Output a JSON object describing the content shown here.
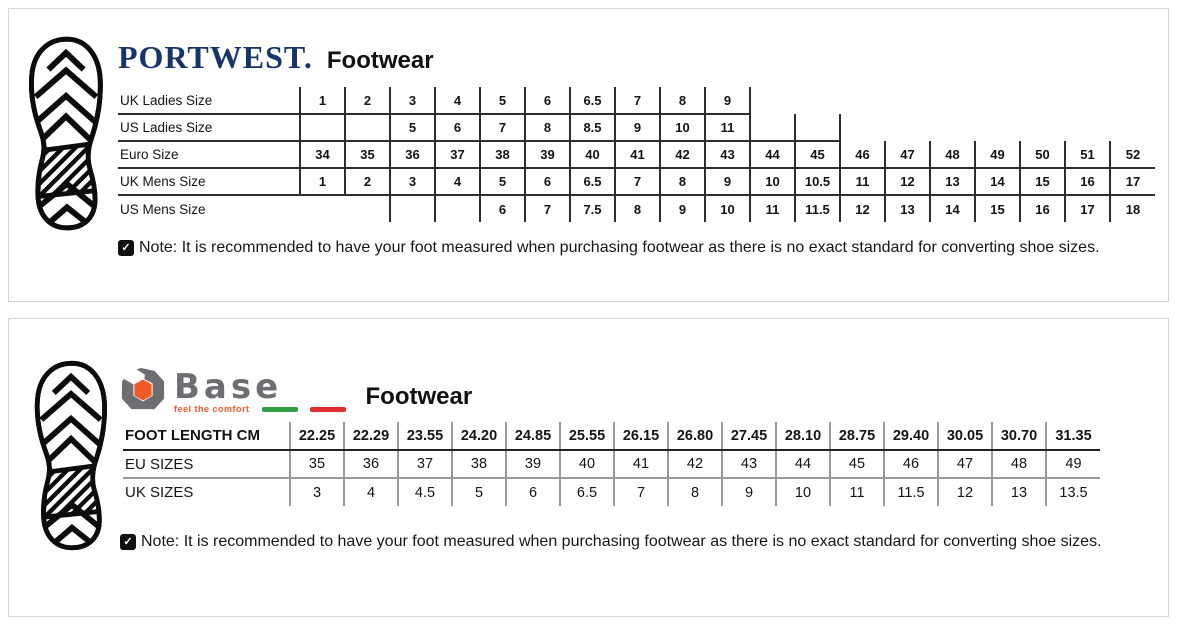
{
  "colors": {
    "portwest_navy": "#17346a",
    "base_gray": "#6d6e71",
    "base_orange": "#f05a28",
    "flag_green": "#2fa042",
    "flag_red": "#e12e2e"
  },
  "icons": {
    "boot_print": "boot-print-icon",
    "note_check": "checkbox-check-icon",
    "base_logo": "base-hex-nut-icon"
  },
  "note_icon_glyph": "✓",
  "panels": {
    "portwest": {
      "brand": "PORTWEST.",
      "title": "Footwear",
      "note": "Note: It is recommended to have your foot measured when purchasing footwear as there is no exact standard for converting shoe sizes.",
      "table": {
        "columns": 19,
        "rows": [
          {
            "label": "UK Ladies Size",
            "underline": true,
            "cap_right": true,
            "cells": [
              "1",
              "2",
              "3",
              "4",
              "5",
              "6",
              "6.5",
              "7",
              "8",
              "9",
              null,
              null,
              null,
              null,
              null,
              null,
              null,
              null,
              null
            ]
          },
          {
            "label": "US Ladies Size",
            "underline": true,
            "cap_right": true,
            "cells": [
              "",
              "",
              "5",
              "6",
              "7",
              "8",
              "8.5",
              "9",
              "10",
              "11",
              "",
              "",
              null,
              null,
              null,
              null,
              null,
              null,
              null
            ]
          },
          {
            "label": "Euro Size",
            "underline": true,
            "cap_right": false,
            "cells": [
              "34",
              "35",
              "36",
              "37",
              "38",
              "39",
              "40",
              "41",
              "42",
              "43",
              "44",
              "45",
              "46",
              "47",
              "48",
              "49",
              "50",
              "51",
              "52"
            ]
          },
          {
            "label": "UK Mens Size",
            "underline": true,
            "cap_right": false,
            "cells": [
              "1",
              "2",
              "3",
              "4",
              "5",
              "6",
              "6.5",
              "7",
              "8",
              "9",
              "10",
              "10.5",
              "11",
              "12",
              "13",
              "14",
              "15",
              "16",
              "17"
            ]
          },
          {
            "label": "US Mens Size",
            "underline": false,
            "cap_right": false,
            "cells": [
              null,
              null,
              "",
              "",
              "6",
              "7",
              "7.5",
              "8",
              "9",
              "10",
              "11",
              "11.5",
              "12",
              "13",
              "14",
              "15",
              "16",
              "17",
              "18"
            ]
          }
        ]
      }
    },
    "base": {
      "brand": "Base",
      "tagline": "feel the comfort",
      "title": "Footwear",
      "note": "Note: It is recommended to have your foot measured when purchasing footwear as there is no exact standard for converting shoe sizes.",
      "table": {
        "columns": 15,
        "rows": [
          {
            "label": "FOOT LENGTH CM",
            "style": "hdr",
            "cells": [
              "22.25",
              "22.29",
              "23.55",
              "24.20",
              "24.85",
              "25.55",
              "26.15",
              "26.80",
              "27.45",
              "28.10",
              "28.75",
              "29.40",
              "30.05",
              "30.70",
              "31.35"
            ]
          },
          {
            "label": "EU SIZES",
            "style": "mid",
            "cells": [
              "35",
              "36",
              "37",
              "38",
              "39",
              "40",
              "41",
              "42",
              "43",
              "44",
              "45",
              "46",
              "47",
              "48",
              "49"
            ]
          },
          {
            "label": "UK SIZES",
            "style": "last",
            "cells": [
              "3",
              "4",
              "4.5",
              "5",
              "6",
              "6.5",
              "7",
              "8",
              "9",
              "10",
              "11",
              "11.5",
              "12",
              "13",
              "13.5"
            ]
          }
        ]
      }
    }
  }
}
